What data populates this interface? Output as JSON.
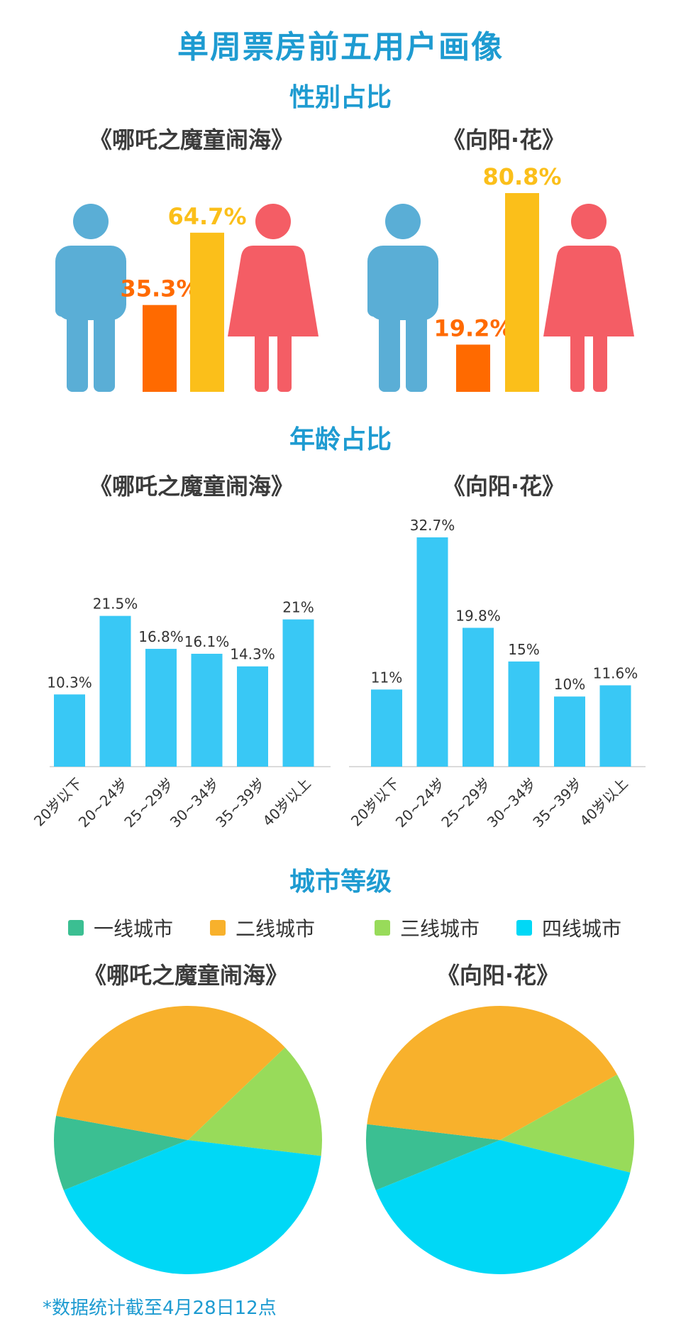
{
  "title": "单周票房前五用户画像",
  "sections": {
    "gender": "性别占比",
    "age": "年龄占比",
    "city": "城市等级"
  },
  "films": [
    "《哪吒之魔童闹海》",
    "《向阳·花》"
  ],
  "footnote": "*数据统计截至4月28日12点",
  "colors": {
    "title": "#1e9bd1",
    "male_icon": "#5aaed6",
    "female_icon": "#f45d65",
    "male_bar": "#ff6a00",
    "female_bar": "#fbbf1a",
    "age_bar": "#39c8f5",
    "tier1": "#3bbf92",
    "tier2": "#f8b12c",
    "tier3": "#98db5a",
    "tier4": "#00d8f6"
  },
  "chart_data": [
    {
      "type": "bar",
      "section": "性别占比",
      "title": "《哪吒之魔童闹海》",
      "categories": [
        "男",
        "女"
      ],
      "values": [
        35.3,
        64.7
      ],
      "labels": [
        "35.3%",
        "64.7%"
      ]
    },
    {
      "type": "bar",
      "section": "性别占比",
      "title": "《向阳·花》",
      "categories": [
        "男",
        "女"
      ],
      "values": [
        19.2,
        80.8
      ],
      "labels": [
        "19.2%",
        "80.8%"
      ]
    },
    {
      "type": "bar",
      "section": "年龄占比",
      "title": "《哪吒之魔童闹海》",
      "categories": [
        "20岁以下",
        "20~24岁",
        "25~29岁",
        "30~34岁",
        "35~39岁",
        "40岁以上"
      ],
      "values": [
        10.3,
        21.5,
        16.8,
        16.1,
        14.3,
        21
      ],
      "labels": [
        "10.3%",
        "21.5%",
        "16.8%",
        "16.1%",
        "14.3%",
        "21%"
      ]
    },
    {
      "type": "bar",
      "section": "年龄占比",
      "title": "《向阳·花》",
      "categories": [
        "20岁以下",
        "20~24岁",
        "25~29岁",
        "30~34岁",
        "35~39岁",
        "40岁以上"
      ],
      "values": [
        11,
        32.7,
        19.8,
        15,
        10,
        11.6
      ],
      "labels": [
        "11%",
        "32.7%",
        "19.8%",
        "15%",
        "10%",
        "11.6%"
      ]
    },
    {
      "type": "pie",
      "section": "城市等级",
      "title": "《哪吒之魔童闹海》",
      "categories": [
        "一线城市",
        "二线城市",
        "三线城市",
        "四线城市"
      ],
      "values": [
        9,
        35,
        14,
        42
      ]
    },
    {
      "type": "pie",
      "section": "城市等级",
      "title": "《向阳·花》",
      "categories": [
        "一线城市",
        "二线城市",
        "三线城市",
        "四线城市"
      ],
      "values": [
        8,
        40,
        12,
        40
      ]
    }
  ]
}
